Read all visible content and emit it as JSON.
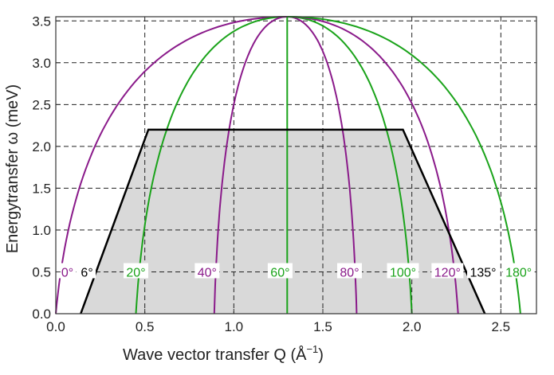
{
  "chart_data": {
    "type": "line",
    "title": "",
    "xlabel": "Wave vector transfer Q (Å",
    "xlabel_sup": "−1",
    "xlabel_close": ")",
    "ylabel": "Energytransfer ω (meV)",
    "xlim": [
      0.0,
      2.7
    ],
    "ylim": [
      0.0,
      3.55
    ],
    "x_ticks": [
      "0.0",
      "0.5",
      "1.0",
      "1.5",
      "2.0",
      "2.5"
    ],
    "y_ticks": [
      "0.0",
      "0.5",
      "1.0",
      "1.5",
      "2.0",
      "2.5",
      "3.0",
      "3.5"
    ],
    "grid": true,
    "colors": {
      "purple": "#8a1a8a",
      "green": "#1aa31a",
      "black": "#000000",
      "region": "#d9d9d9"
    },
    "series": [
      {
        "angle": 0,
        "label": "0°",
        "color": "purple",
        "q0": 0.0,
        "label_q": 0.065
      },
      {
        "angle": 6,
        "label": "6°",
        "color": "black",
        "q0": 0.13,
        "label_q": 0.175
      },
      {
        "angle": 20,
        "label": "20°",
        "color": "green",
        "q0": 0.45,
        "label_q": 0.45
      },
      {
        "angle": 40,
        "label": "40°",
        "color": "purple",
        "q0": 0.89,
        "label_q": 0.85
      },
      {
        "angle": 60,
        "label": "60°",
        "color": "green",
        "q0": 1.3,
        "label_q": 1.26
      },
      {
        "angle": 80,
        "label": "80°",
        "color": "purple",
        "q0": 1.69,
        "label_q": 1.65
      },
      {
        "angle": 100,
        "label": "100°",
        "color": "green",
        "q0": 2.0,
        "label_q": 1.95
      },
      {
        "angle": 120,
        "label": "120°",
        "color": "purple",
        "q0": 2.26,
        "label_q": 2.2
      },
      {
        "angle": 135,
        "label": "135°",
        "color": "black",
        "q0": 2.4,
        "label_q": 2.4
      },
      {
        "angle": 180,
        "label": "180°",
        "color": "green",
        "q0": 2.61,
        "label_q": 2.6
      }
    ],
    "apex": {
      "q": 1.3,
      "omega": 3.55
    },
    "label_omega": 0.5,
    "accessible_region": {
      "omega_max": 2.2,
      "top_q": [
        0.52,
        1.95
      ],
      "bottom_q": [
        0.14,
        2.41
      ]
    }
  }
}
